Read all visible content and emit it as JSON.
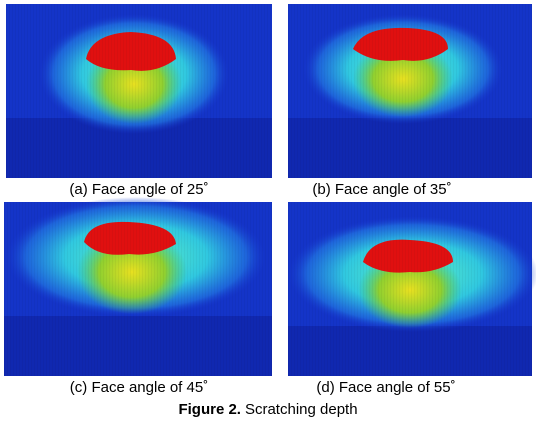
{
  "figure": {
    "panels": [
      {
        "caption": "(a) Face angle of 25˚"
      },
      {
        "caption": "(b) Face angle of 35˚"
      },
      {
        "caption": "(c) Face angle of 45˚"
      },
      {
        "caption": "(d) Face angle of 55˚"
      }
    ],
    "label": "Figure 2.",
    "caption": "Scratching depth"
  }
}
